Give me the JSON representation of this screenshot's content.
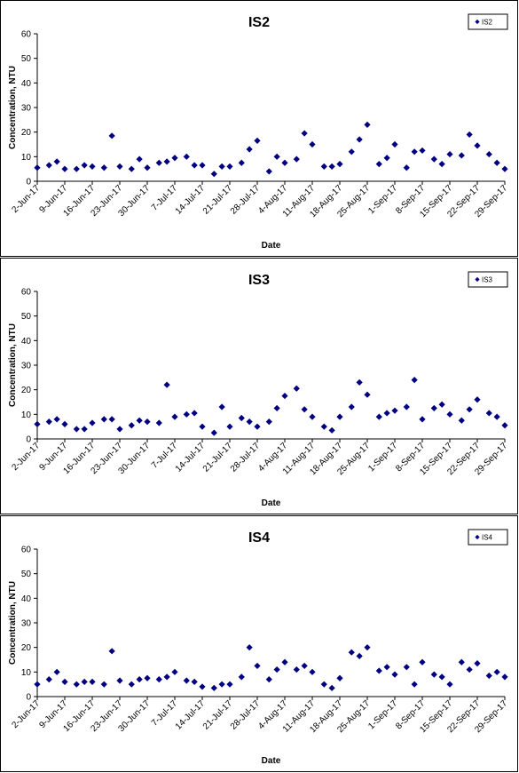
{
  "chart_data": [
    {
      "type": "scatter",
      "title": "IS2",
      "xlabel": "Date",
      "ylabel": "Concentration, NTU",
      "ylim": [
        0,
        60
      ],
      "yticks": [
        0,
        10,
        20,
        30,
        40,
        50,
        60
      ],
      "xlim": [
        "2017-06-02",
        "2017-09-29"
      ],
      "xtick_labels": [
        "2-Jun-17",
        "9-Jun-17",
        "16-Jun-17",
        "23-Jun-17",
        "30-Jun-17",
        "7-Jul-17",
        "14-Jul-17",
        "21-Jul-17",
        "28-Jul-17",
        "4-Aug-17",
        "11-Aug-17",
        "18-Aug-17",
        "25-Aug-17",
        "1-Sep-17",
        "8-Sep-17",
        "15-Sep-17",
        "22-Sep-17",
        "29-Sep-17"
      ],
      "grid": false,
      "legend": "top-right",
      "marker_color": "#000080",
      "series": [
        {
          "name": "IS2",
          "x": [
            "2017-06-02",
            "2017-06-05",
            "2017-06-07",
            "2017-06-09",
            "2017-06-12",
            "2017-06-14",
            "2017-06-16",
            "2017-06-19",
            "2017-06-21",
            "2017-06-23",
            "2017-06-26",
            "2017-06-28",
            "2017-06-30",
            "2017-07-03",
            "2017-07-05",
            "2017-07-07",
            "2017-07-10",
            "2017-07-12",
            "2017-07-14",
            "2017-07-17",
            "2017-07-19",
            "2017-07-21",
            "2017-07-24",
            "2017-07-26",
            "2017-07-28",
            "2017-07-31",
            "2017-08-02",
            "2017-08-04",
            "2017-08-07",
            "2017-08-09",
            "2017-08-11",
            "2017-08-14",
            "2017-08-16",
            "2017-08-18",
            "2017-08-21",
            "2017-08-23",
            "2017-08-25",
            "2017-08-28",
            "2017-08-30",
            "2017-09-01",
            "2017-09-04",
            "2017-09-06",
            "2017-09-08",
            "2017-09-11",
            "2017-09-13",
            "2017-09-15",
            "2017-09-18",
            "2017-09-20",
            "2017-09-22",
            "2017-09-25",
            "2017-09-27",
            "2017-09-29"
          ],
          "y": [
            5.5,
            6.5,
            8,
            5,
            5,
            6.5,
            6,
            5.5,
            18.5,
            6,
            5,
            9,
            5.5,
            7.5,
            8,
            9.5,
            10,
            6.5,
            6.5,
            3,
            6,
            6,
            7.5,
            13,
            16.5,
            4,
            10,
            7.5,
            9,
            19.5,
            15,
            6,
            6,
            7,
            12,
            17,
            23,
            7,
            9.5,
            15,
            5.5,
            12,
            12.5,
            9,
            7,
            11,
            10.5,
            19,
            14.5,
            11,
            7.5,
            5
          ]
        }
      ]
    },
    {
      "type": "scatter",
      "title": "IS3",
      "xlabel": "Date",
      "ylabel": "Concentration, NTU",
      "ylim": [
        0,
        60
      ],
      "yticks": [
        0,
        10,
        20,
        30,
        40,
        50,
        60
      ],
      "xlim": [
        "2017-06-02",
        "2017-09-29"
      ],
      "xtick_labels": [
        "2-Jun-17",
        "9-Jun-17",
        "16-Jun-17",
        "23-Jun-17",
        "30-Jun-17",
        "7-Jul-17",
        "14-Jul-17",
        "21-Jul-17",
        "28-Jul-17",
        "4-Aug-17",
        "11-Aug-17",
        "18-Aug-17",
        "25-Aug-17",
        "1-Sep-17",
        "8-Sep-17",
        "15-Sep-17",
        "22-Sep-17",
        "29-Sep-17"
      ],
      "grid": false,
      "legend": "top-right",
      "marker_color": "#000080",
      "series": [
        {
          "name": "IS3",
          "x": [
            "2017-06-02",
            "2017-06-05",
            "2017-06-07",
            "2017-06-09",
            "2017-06-12",
            "2017-06-14",
            "2017-06-16",
            "2017-06-19",
            "2017-06-21",
            "2017-06-23",
            "2017-06-26",
            "2017-06-28",
            "2017-06-30",
            "2017-07-03",
            "2017-07-05",
            "2017-07-07",
            "2017-07-10",
            "2017-07-12",
            "2017-07-14",
            "2017-07-17",
            "2017-07-19",
            "2017-07-21",
            "2017-07-24",
            "2017-07-26",
            "2017-07-28",
            "2017-07-31",
            "2017-08-02",
            "2017-08-04",
            "2017-08-07",
            "2017-08-09",
            "2017-08-11",
            "2017-08-14",
            "2017-08-16",
            "2017-08-18",
            "2017-08-21",
            "2017-08-23",
            "2017-08-25",
            "2017-08-28",
            "2017-08-30",
            "2017-09-01",
            "2017-09-04",
            "2017-09-06",
            "2017-09-08",
            "2017-09-11",
            "2017-09-13",
            "2017-09-15",
            "2017-09-18",
            "2017-09-20",
            "2017-09-22",
            "2017-09-25",
            "2017-09-27",
            "2017-09-29"
          ],
          "y": [
            6,
            7,
            8,
            6,
            4,
            4,
            6.5,
            8,
            8,
            4,
            5.5,
            7.5,
            7,
            6.5,
            22,
            9,
            10,
            10.5,
            5,
            2.5,
            13,
            5,
            8.5,
            7,
            5,
            7,
            12.5,
            17.5,
            20.5,
            12,
            9,
            5,
            3.5,
            9,
            13,
            23,
            18,
            9,
            10.5,
            11.5,
            13,
            24,
            8,
            12.5,
            14,
            10,
            7.5,
            12,
            16,
            10.5,
            9,
            5.5
          ]
        }
      ]
    },
    {
      "type": "scatter",
      "title": "IS4",
      "xlabel": "Date",
      "ylabel": "Concentration, NTU",
      "ylim": [
        0,
        60
      ],
      "yticks": [
        0,
        10,
        20,
        30,
        40,
        50,
        60
      ],
      "xlim": [
        "2017-06-02",
        "2017-09-29"
      ],
      "xtick_labels": [
        "2-Jun-17",
        "9-Jun-17",
        "16-Jun-17",
        "23-Jun-17",
        "30-Jun-17",
        "7-Jul-17",
        "14-Jul-17",
        "21-Jul-17",
        "28-Jul-17",
        "4-Aug-17",
        "11-Aug-17",
        "18-Aug-17",
        "25-Aug-17",
        "1-Sep-17",
        "8-Sep-17",
        "15-Sep-17",
        "22-Sep-17",
        "29-Sep-17"
      ],
      "grid": false,
      "legend": "top-right",
      "marker_color": "#000080",
      "series": [
        {
          "name": "IS4",
          "x": [
            "2017-06-02",
            "2017-06-05",
            "2017-06-07",
            "2017-06-09",
            "2017-06-12",
            "2017-06-14",
            "2017-06-16",
            "2017-06-19",
            "2017-06-21",
            "2017-06-23",
            "2017-06-26",
            "2017-06-28",
            "2017-06-30",
            "2017-07-03",
            "2017-07-05",
            "2017-07-07",
            "2017-07-10",
            "2017-07-12",
            "2017-07-14",
            "2017-07-17",
            "2017-07-19",
            "2017-07-21",
            "2017-07-24",
            "2017-07-26",
            "2017-07-28",
            "2017-07-31",
            "2017-08-02",
            "2017-08-04",
            "2017-08-07",
            "2017-08-09",
            "2017-08-11",
            "2017-08-14",
            "2017-08-16",
            "2017-08-18",
            "2017-08-21",
            "2017-08-23",
            "2017-08-25",
            "2017-08-28",
            "2017-08-30",
            "2017-09-01",
            "2017-09-04",
            "2017-09-06",
            "2017-09-08",
            "2017-09-11",
            "2017-09-13",
            "2017-09-15",
            "2017-09-18",
            "2017-09-20",
            "2017-09-22",
            "2017-09-25",
            "2017-09-27",
            "2017-09-29"
          ],
          "y": [
            5,
            7,
            10,
            6,
            5,
            6,
            6,
            5,
            18.5,
            6.5,
            5,
            7,
            7.5,
            7,
            8,
            10,
            6.5,
            6,
            4,
            3.5,
            5,
            5,
            8,
            20,
            12.5,
            7,
            11,
            14,
            11,
            12.5,
            10,
            5,
            3.5,
            7.5,
            18,
            16.5,
            20,
            10.5,
            12,
            9,
            12,
            5,
            14,
            9,
            8,
            5,
            14,
            11,
            13.5,
            8.5,
            10,
            8
          ]
        }
      ]
    }
  ]
}
